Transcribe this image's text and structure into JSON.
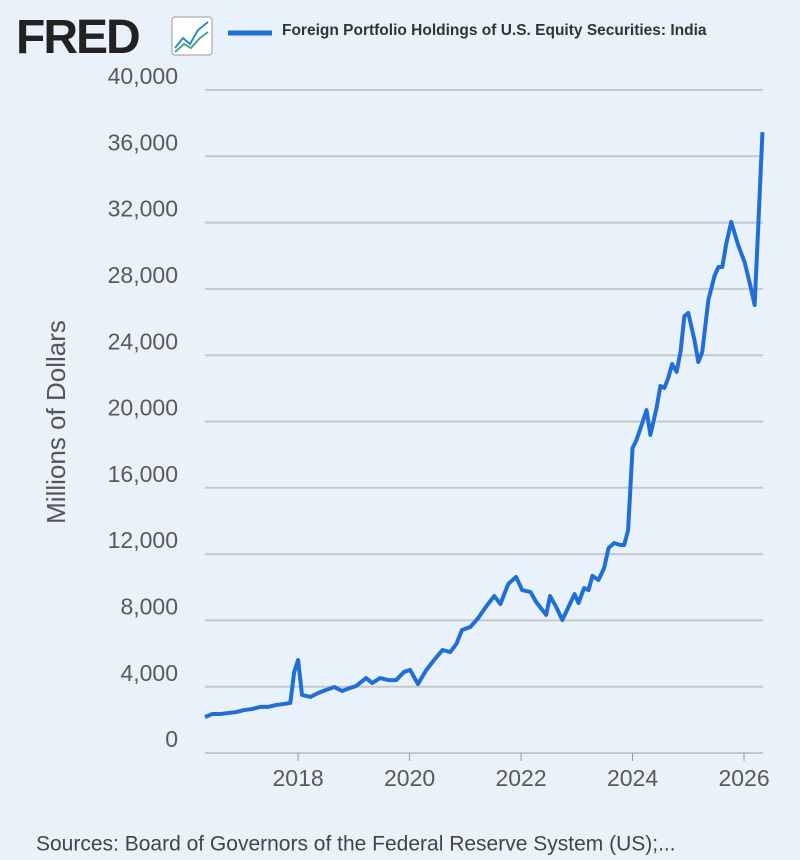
{
  "brand": "FRED",
  "chart_data": {
    "type": "line",
    "y_label": "Millions of Dollars",
    "source": "Sources: Board of Governors of the Federal Reserve System (US);...",
    "x": [
      2016.33,
      2016.46,
      2016.6,
      2016.74,
      2016.89,
      2017.03,
      2017.17,
      2017.32,
      2017.46,
      2017.61,
      2017.75,
      2017.86,
      2017.93,
      2018.0,
      2018.07,
      2018.22,
      2018.36,
      2018.5,
      2018.65,
      2018.79,
      2018.93,
      2019.04,
      2019.22,
      2019.33,
      2019.47,
      2019.62,
      2019.76,
      2019.9,
      2020.01,
      2020.15,
      2020.3,
      2020.44,
      2020.59,
      2020.73,
      2020.84,
      2020.94,
      2021.09,
      2021.23,
      2021.38,
      2021.52,
      2021.63,
      2021.77,
      2021.91,
      2022.02,
      2022.17,
      2022.27,
      2022.45,
      2022.52,
      2022.63,
      2022.74,
      2022.85,
      2022.96,
      2023.03,
      2023.13,
      2023.21,
      2023.28,
      2023.39,
      2023.49,
      2023.57,
      2023.67,
      2023.78,
      2023.85,
      2023.92,
      2024.0,
      2024.07,
      2024.18,
      2024.25,
      2024.32,
      2024.43,
      2024.5,
      2024.57,
      2024.64,
      2024.71,
      2024.79,
      2024.86,
      2024.93,
      2025.0,
      2025.11,
      2025.18,
      2025.25,
      2025.36,
      2025.47,
      2025.54,
      2025.61,
      2025.68,
      2025.77,
      2025.9,
      2026.01,
      2026.11,
      2026.19,
      2026.26,
      2026.33
    ],
    "series": [
      {
        "name": "Foreign Portfolio Holdings of U.S. Equity Securities: India",
        "color": "#1f6fd6",
        "values": [
          2170,
          2350,
          2350,
          2410,
          2470,
          2590,
          2650,
          2780,
          2780,
          2900,
          2960,
          3020,
          4890,
          5610,
          3500,
          3380,
          3620,
          3800,
          3980,
          3740,
          3920,
          4040,
          4520,
          4220,
          4520,
          4400,
          4400,
          4890,
          5010,
          4160,
          5010,
          5610,
          6210,
          6090,
          6580,
          7420,
          7600,
          8140,
          8870,
          9470,
          8990,
          10200,
          10620,
          9830,
          9710,
          9110,
          8330,
          9470,
          8810,
          8020,
          8810,
          9590,
          9050,
          9950,
          9830,
          10680,
          10440,
          11160,
          12370,
          12670,
          12550,
          12550,
          13450,
          18400,
          18880,
          19970,
          20690,
          19190,
          20810,
          22140,
          22020,
          22620,
          23470,
          22990,
          24190,
          26360,
          26550,
          24920,
          23590,
          24190,
          27330,
          28780,
          29320,
          29320,
          30710,
          32040,
          30590,
          29620,
          28230,
          27030,
          32160,
          37460
        ]
      }
    ],
    "xlim": [
      2016.33,
      2026.34
    ],
    "xticks": [
      2018,
      2020,
      2022,
      2024,
      2026
    ],
    "ylim": [
      0,
      40000
    ],
    "yticks": [
      0,
      {
        "value": 4000,
        "label": "4,000"
      },
      {
        "value": 8000,
        "label": "8,000"
      },
      {
        "value": 12000,
        "label": "12,000"
      },
      {
        "value": 16000,
        "label": "16,000"
      },
      {
        "value": 20000,
        "label": "20,000"
      },
      {
        "value": 24000,
        "label": "24,000"
      },
      {
        "value": 28000,
        "label": "28,000"
      },
      {
        "value": 32000,
        "label": "32,000"
      },
      {
        "value": 36000,
        "label": "36,000"
      },
      {
        "value": 40000,
        "label": "40,000"
      }
    ],
    "grid": true
  }
}
